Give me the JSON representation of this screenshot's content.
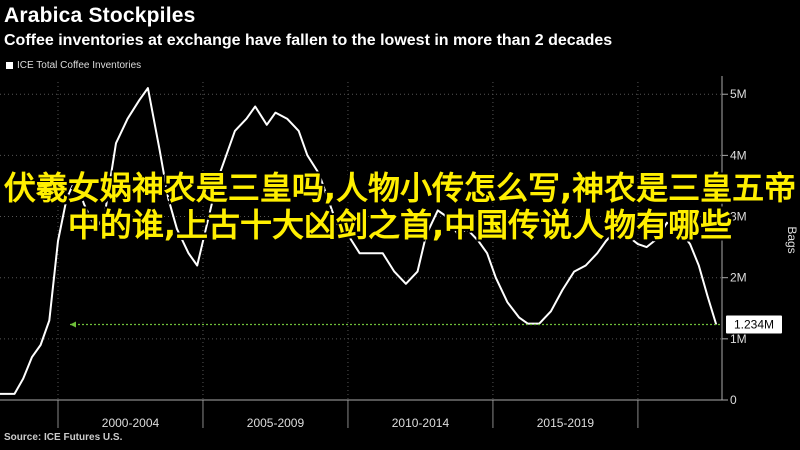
{
  "header": {
    "title": "Arabica Stockpiles",
    "subtitle": "Coffee inventories at exchange have fallen to the lowest in more than 2 decades"
  },
  "legend": {
    "label": "ICE Total Coffee Inventories"
  },
  "source": "Source: ICE Futures U.S.",
  "overlay_text": "伏羲女娲神农是三皇吗,人物小传怎么写,神农是三皇五帝中的谁,上古十大凶剑之首,中国传说人物有哪些",
  "colors": {
    "background": "#000000",
    "line": "#ffffff",
    "grid": "#555555",
    "reference": "#6fbf3a",
    "overlay": "#ffef00"
  },
  "chart_data": {
    "type": "line",
    "title": "Arabica Stockpiles",
    "ylabel": "Bags",
    "ylim": [
      0,
      5.2
    ],
    "y_ticks": [
      0,
      1,
      2,
      3,
      4,
      5
    ],
    "y_tick_labels": [
      "0",
      "1M",
      "2M",
      "3M",
      "4M",
      "5M"
    ],
    "x_range": [
      1997.5,
      2022.4
    ],
    "x_tick_labels": [
      "2000-2004",
      "2005-2009",
      "2010-2014",
      "2015-2019"
    ],
    "x_tick_centers": [
      2002,
      2007,
      2012,
      2017
    ],
    "x_dividers": [
      1999.5,
      2004.5,
      2009.5,
      2014.5,
      2019.5
    ],
    "grid": true,
    "reference_line": {
      "value": 1.234,
      "label": "1.234M",
      "style": "dotted"
    },
    "series": [
      {
        "name": "ICE Total Coffee Inventories",
        "x": [
          1997.5,
          1998.0,
          1998.3,
          1998.6,
          1998.9,
          1999.2,
          1999.5,
          1999.8,
          2000.1,
          2000.4,
          2000.8,
          2001.1,
          2001.5,
          2001.9,
          2002.3,
          2002.6,
          2003.0,
          2003.3,
          2003.6,
          2004.0,
          2004.3,
          2004.6,
          2005.0,
          2005.3,
          2005.6,
          2006.0,
          2006.3,
          2006.7,
          2007.0,
          2007.4,
          2007.8,
          2008.1,
          2008.5,
          2008.8,
          2009.1,
          2009.5,
          2009.9,
          2010.3,
          2010.7,
          2011.1,
          2011.5,
          2011.9,
          2012.2,
          2012.6,
          2012.9,
          2013.3,
          2013.6,
          2014.0,
          2014.3,
          2014.6,
          2015.0,
          2015.4,
          2015.7,
          2016.1,
          2016.5,
          2016.9,
          2017.3,
          2017.7,
          2018.1,
          2018.4,
          2018.8,
          2019.1,
          2019.5,
          2019.8,
          2020.2,
          2020.5,
          2020.9,
          2021.3,
          2021.6,
          2021.9,
          2022.2
        ],
        "values": [
          0.1,
          0.1,
          0.35,
          0.7,
          0.9,
          1.3,
          2.6,
          3.3,
          3.6,
          3.2,
          2.8,
          3.0,
          4.2,
          4.6,
          4.9,
          5.1,
          4.1,
          3.3,
          2.8,
          2.4,
          2.2,
          2.8,
          3.6,
          4.0,
          4.4,
          4.6,
          4.8,
          4.5,
          4.7,
          4.6,
          4.4,
          4.0,
          3.7,
          3.3,
          2.9,
          2.7,
          2.4,
          2.4,
          2.4,
          2.1,
          1.9,
          2.1,
          2.7,
          3.1,
          3.0,
          2.7,
          2.8,
          2.6,
          2.4,
          2.0,
          1.6,
          1.35,
          1.25,
          1.25,
          1.45,
          1.8,
          2.1,
          2.2,
          2.4,
          2.6,
          2.8,
          2.7,
          2.55,
          2.5,
          2.65,
          2.9,
          2.8,
          2.55,
          2.2,
          1.7,
          1.234
        ]
      }
    ]
  }
}
